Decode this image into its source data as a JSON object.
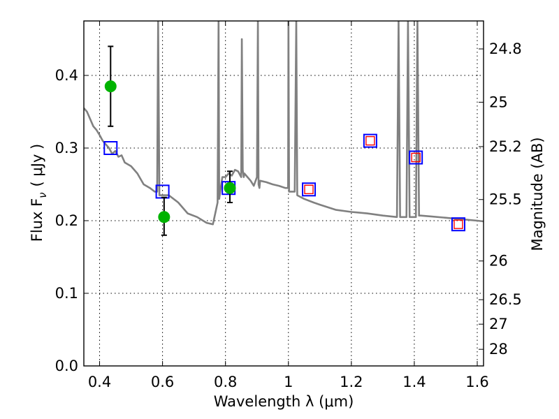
{
  "chart_data": {
    "type": "scatter",
    "xlabel": "Wavelength  λ (μm)",
    "ylabel": "Flux  F",
    "ylabel_sub": "ν",
    "ylabel_units": "( μJy )",
    "y2label": "Magnitude (AB)",
    "xlim": [
      0.35,
      1.62
    ],
    "ylim": [
      0.0,
      0.475
    ],
    "xticks": [
      0.4,
      0.6,
      0.8,
      1.0,
      1.2,
      1.4,
      1.6
    ],
    "xtick_labels": [
      "0.4",
      "0.6",
      "0.8",
      "1",
      "1.2",
      "1.4",
      "1.6"
    ],
    "yticks": [
      0.0,
      0.1,
      0.2,
      0.3,
      0.4
    ],
    "ytick_labels": [
      "0.0",
      "0.1",
      "0.2",
      "0.3",
      "0.4"
    ],
    "y2ticks": [
      {
        "label": "24.8",
        "flux": 0.4365
      },
      {
        "label": "25",
        "flux": 0.3631
      },
      {
        "label": "25.2",
        "flux": 0.302
      },
      {
        "label": "25.5",
        "flux": 0.2291
      },
      {
        "label": "26",
        "flux": 0.1445
      },
      {
        "label": "26.5",
        "flux": 0.0912
      },
      {
        "label": "27",
        "flux": 0.0575
      },
      {
        "label": "28",
        "flux": 0.0229
      }
    ],
    "grid": true,
    "series": [
      {
        "kind": "line",
        "color": "#808080",
        "x": [
          0.35,
          0.36,
          0.37,
          0.38,
          0.39,
          0.4,
          0.41,
          0.42,
          0.43,
          0.44,
          0.45,
          0.46,
          0.47,
          0.48,
          0.5,
          0.52,
          0.54,
          0.56,
          0.575,
          0.583,
          0.586,
          0.59,
          0.62,
          0.65,
          0.68,
          0.71,
          0.74,
          0.76,
          0.775,
          0.778,
          0.78,
          0.785,
          0.79,
          0.8,
          0.81,
          0.82,
          0.83,
          0.84,
          0.85,
          0.852,
          0.855,
          0.858,
          0.86,
          0.87,
          0.88,
          0.89,
          0.9,
          0.903,
          0.905,
          0.908,
          0.91,
          0.93,
          0.95,
          0.97,
          0.99,
          0.999,
          1.0,
          1.002,
          1.005,
          1.02,
          1.025,
          1.028,
          1.05,
          1.08,
          1.1,
          1.15,
          1.2,
          1.25,
          1.3,
          1.345,
          1.35,
          1.355,
          1.36,
          1.37,
          1.375,
          1.38,
          1.385,
          1.39,
          1.4,
          1.405,
          1.41,
          1.415,
          1.42,
          1.45,
          1.5,
          1.55,
          1.6,
          1.62
        ],
        "y": [
          0.355,
          0.35,
          0.34,
          0.33,
          0.325,
          0.318,
          0.31,
          0.305,
          0.3,
          0.292,
          0.296,
          0.288,
          0.29,
          0.28,
          0.275,
          0.265,
          0.25,
          0.245,
          0.24,
          0.24,
          0.475,
          0.235,
          0.235,
          0.225,
          0.21,
          0.205,
          0.197,
          0.195,
          0.225,
          0.475,
          0.23,
          0.245,
          0.26,
          0.26,
          0.265,
          0.262,
          0.27,
          0.268,
          0.26,
          0.45,
          0.27,
          0.26,
          0.265,
          0.26,
          0.255,
          0.248,
          0.26,
          0.475,
          0.25,
          0.245,
          0.255,
          0.253,
          0.25,
          0.248,
          0.245,
          0.245,
          0.475,
          0.24,
          0.24,
          0.24,
          0.475,
          0.235,
          0.23,
          0.225,
          0.222,
          0.215,
          0.212,
          0.21,
          0.207,
          0.205,
          0.475,
          0.205,
          0.205,
          0.205,
          0.205,
          0.475,
          0.205,
          0.205,
          0.205,
          0.205,
          0.475,
          0.207,
          0.207,
          0.206,
          0.204,
          0.202,
          0.2,
          0.199
        ]
      },
      {
        "kind": "points",
        "marker": "open-square",
        "color": "#0000ff",
        "x": [
          0.435,
          0.6,
          0.81,
          1.065,
          1.26,
          1.405,
          1.54
        ],
        "y": [
          0.3,
          0.24,
          0.245,
          0.243,
          0.31,
          0.287,
          0.195
        ]
      },
      {
        "kind": "points",
        "marker": "open-square-small",
        "color": "#ff0000",
        "x": [
          1.065,
          1.26,
          1.405,
          1.54
        ],
        "y": [
          0.243,
          0.31,
          0.287,
          0.195
        ]
      },
      {
        "kind": "points",
        "marker": "filled-circle",
        "color": "#00b300",
        "x": [
          0.435,
          0.605,
          0.814
        ],
        "y": [
          0.385,
          0.205,
          0.245
        ],
        "yerr_low": [
          0.33,
          0.18,
          0.225
        ],
        "yerr_high": [
          0.44,
          0.232,
          0.268
        ]
      }
    ]
  }
}
